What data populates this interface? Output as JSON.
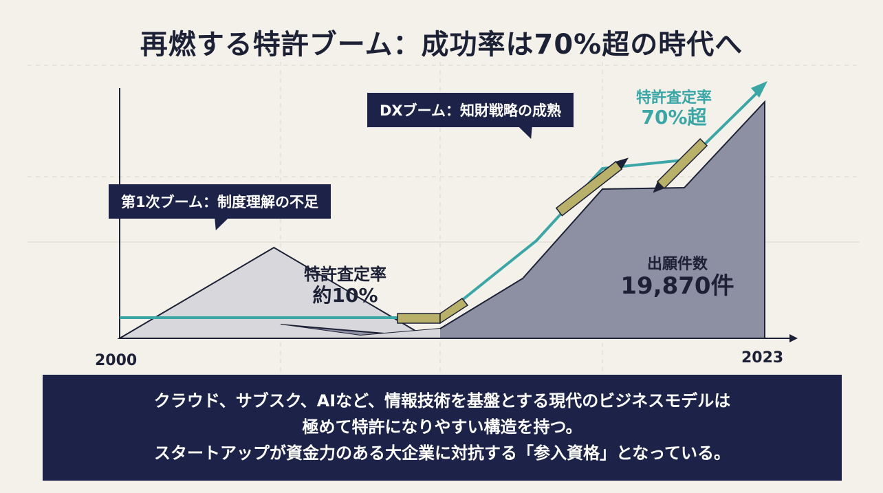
{
  "title": "再燃する特許ブーム：成功率は70%超の時代へ",
  "chart_data": {
    "type": "area",
    "x_start_label": "2000",
    "x_end_label": "2023",
    "xlim": [
      2000,
      2023
    ],
    "series": [
      {
        "name": "出願件数",
        "kind": "area",
        "x": [
          2000,
          2005.5,
          2011,
          2023
        ],
        "y": [
          0,
          1,
          0,
          0
        ]
      },
      {
        "name": "出願件数",
        "kind": "area",
        "x": [
          2000,
          2011,
          2017,
          2023
        ],
        "y": [
          0,
          0.05,
          0.8,
          1
        ]
      },
      {
        "name": "特許査定率",
        "kind": "line",
        "x": [
          2000,
          2011,
          2017,
          2023
        ],
        "y": [
          10,
          10,
          60,
          70
        ]
      }
    ],
    "callouts": [
      "第1次ブーム：制度理解の不足",
      "DXブーム：知財戦略の成熟"
    ],
    "annotations": {
      "rate_low_label": "特許査定率",
      "rate_low_value": "約10%",
      "rate_high_label": "特許査定率",
      "rate_high_value": "70%超",
      "applications_label": "出願件数",
      "applications_value": "19,870件"
    }
  },
  "banner": {
    "line1": "クラウド、サブスク、AIなど、情報技術を基盤とする現代のビジネスモデルは",
    "line2": "極めて特許になりやすい構造を持つ。",
    "line3": "スタートアップが資金力のある大企業に対抗する「参入資格」となっている。"
  },
  "colors": {
    "background": "#f3f1ea",
    "navy": "#1d2348",
    "area_first_boom": "#d8d8dc",
    "area_dx_boom": "#8d8fa3",
    "rate_line": "#3aa6a6",
    "pen": "#b9b06a"
  }
}
